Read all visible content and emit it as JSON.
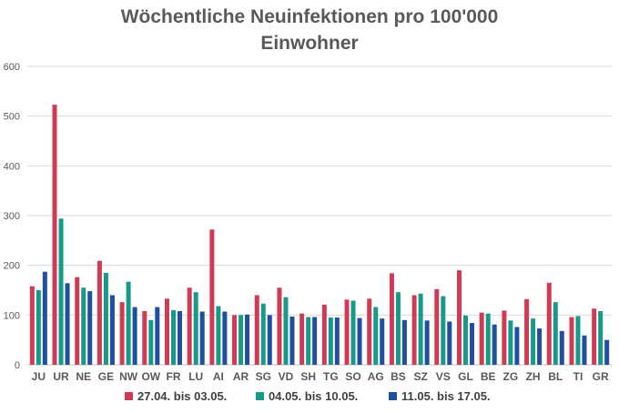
{
  "chart_data": {
    "type": "bar",
    "title_lines": [
      "Wöchentliche Neuinfektionen pro 100'000",
      "Einwohner"
    ],
    "xlabel": "",
    "ylabel": "",
    "ylim": [
      0,
      600
    ],
    "yticks": [
      0,
      100,
      200,
      300,
      400,
      500,
      600
    ],
    "grid": true,
    "legend_position": "bottom",
    "categories": [
      "JU",
      "UR",
      "NE",
      "GE",
      "NW",
      "OW",
      "FR",
      "LU",
      "AI",
      "AR",
      "SG",
      "VD",
      "SH",
      "TG",
      "SO",
      "AG",
      "BS",
      "SZ",
      "VS",
      "GL",
      "BE",
      "ZG",
      "ZH",
      "BL",
      "TI",
      "GR"
    ],
    "series": [
      {
        "name": "27.04. bis 03.05.",
        "color": "#d03a55",
        "values": [
          158,
          523,
          176,
          209,
          126,
          108,
          133,
          155,
          272,
          100,
          140,
          155,
          103,
          121,
          131,
          133,
          184,
          140,
          152,
          190,
          105,
          109,
          132,
          165,
          96,
          113
        ]
      },
      {
        "name": "04.05. bis 10.05.",
        "color": "#169b8a",
        "values": [
          150,
          294,
          155,
          185,
          167,
          90,
          110,
          146,
          118,
          100,
          123,
          136,
          96,
          95,
          129,
          116,
          146,
          143,
          138,
          99,
          103,
          89,
          93,
          126,
          98,
          108
        ]
      },
      {
        "name": "11.05. bis 17.05.",
        "color": "#1f4f9e",
        "values": [
          187,
          164,
          148,
          140,
          116,
          116,
          108,
          107,
          107,
          101,
          100,
          97,
          96,
          95,
          94,
          93,
          90,
          89,
          87,
          84,
          81,
          76,
          73,
          68,
          59,
          50
        ]
      }
    ]
  }
}
